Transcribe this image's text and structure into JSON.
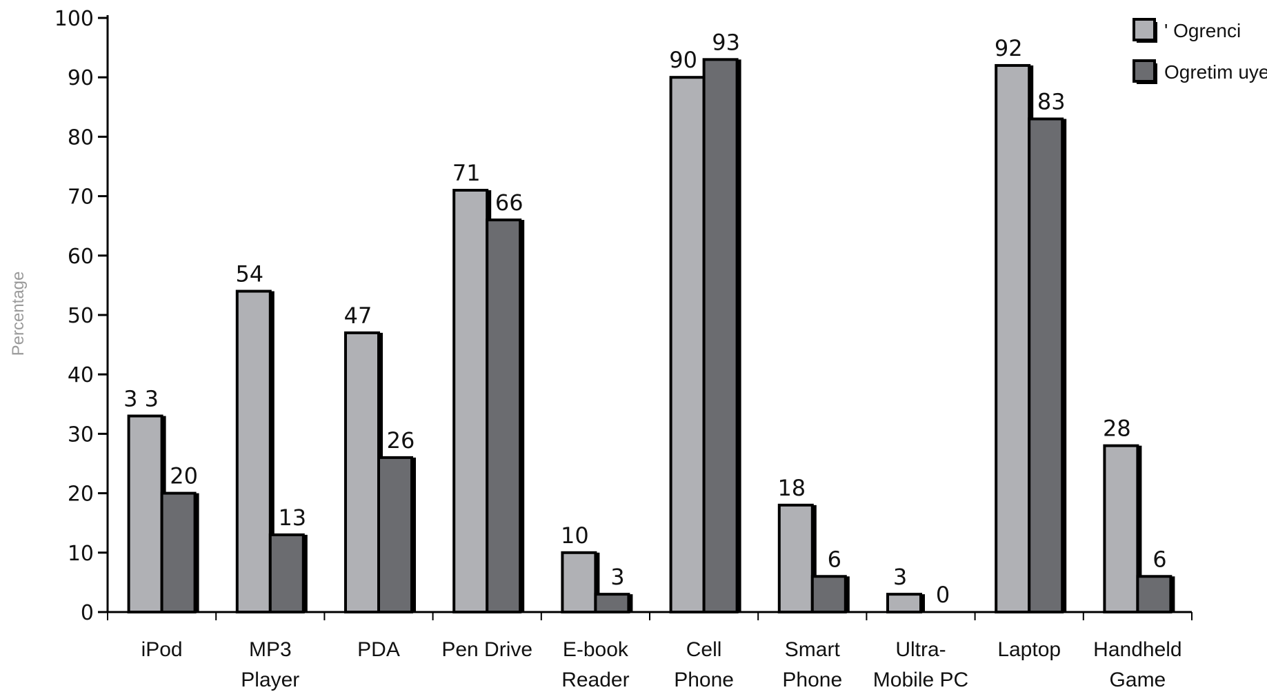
{
  "chart_data": {
    "type": "bar",
    "title": "",
    "xlabel": "",
    "ylabel": "Percentage",
    "ylim": [
      0,
      100
    ],
    "yticks": [
      0,
      10,
      20,
      30,
      40,
      50,
      60,
      70,
      80,
      90,
      100
    ],
    "grid": false,
    "legend_position": "top-right",
    "categories": [
      [
        "iPod"
      ],
      [
        "MP3",
        "Player"
      ],
      [
        "PDA"
      ],
      [
        "Pen Drive"
      ],
      [
        "E-book",
        "Reader"
      ],
      [
        "Cell",
        "Phone"
      ],
      [
        "Smart",
        "Phone"
      ],
      [
        "Ultra-",
        "Mobile PC"
      ],
      [
        "Laptop"
      ],
      [
        "Handheld",
        "Game"
      ]
    ],
    "series": [
      {
        "name": "Ogrenci",
        "color": "#b0b1b5",
        "values": [
          33,
          54,
          47,
          71,
          10,
          90,
          18,
          3,
          92,
          28
        ]
      },
      {
        "name": "Ogretim uyesi",
        "color": "#6b6c70",
        "values": [
          20,
          13,
          26,
          66,
          3,
          93,
          6,
          0,
          83,
          6
        ]
      }
    ],
    "data_labels": [
      [
        "3 3",
        "54",
        "47",
        "71",
        "10",
        "90",
        "18",
        "3",
        "92",
        "28"
      ],
      [
        "20",
        "13",
        "26",
        "66",
        "3",
        "93",
        "6",
        "0",
        "83",
        "6"
      ]
    ],
    "legend_labels": [
      "' Ogrenci",
      "Ogretim uyesi"
    ]
  }
}
